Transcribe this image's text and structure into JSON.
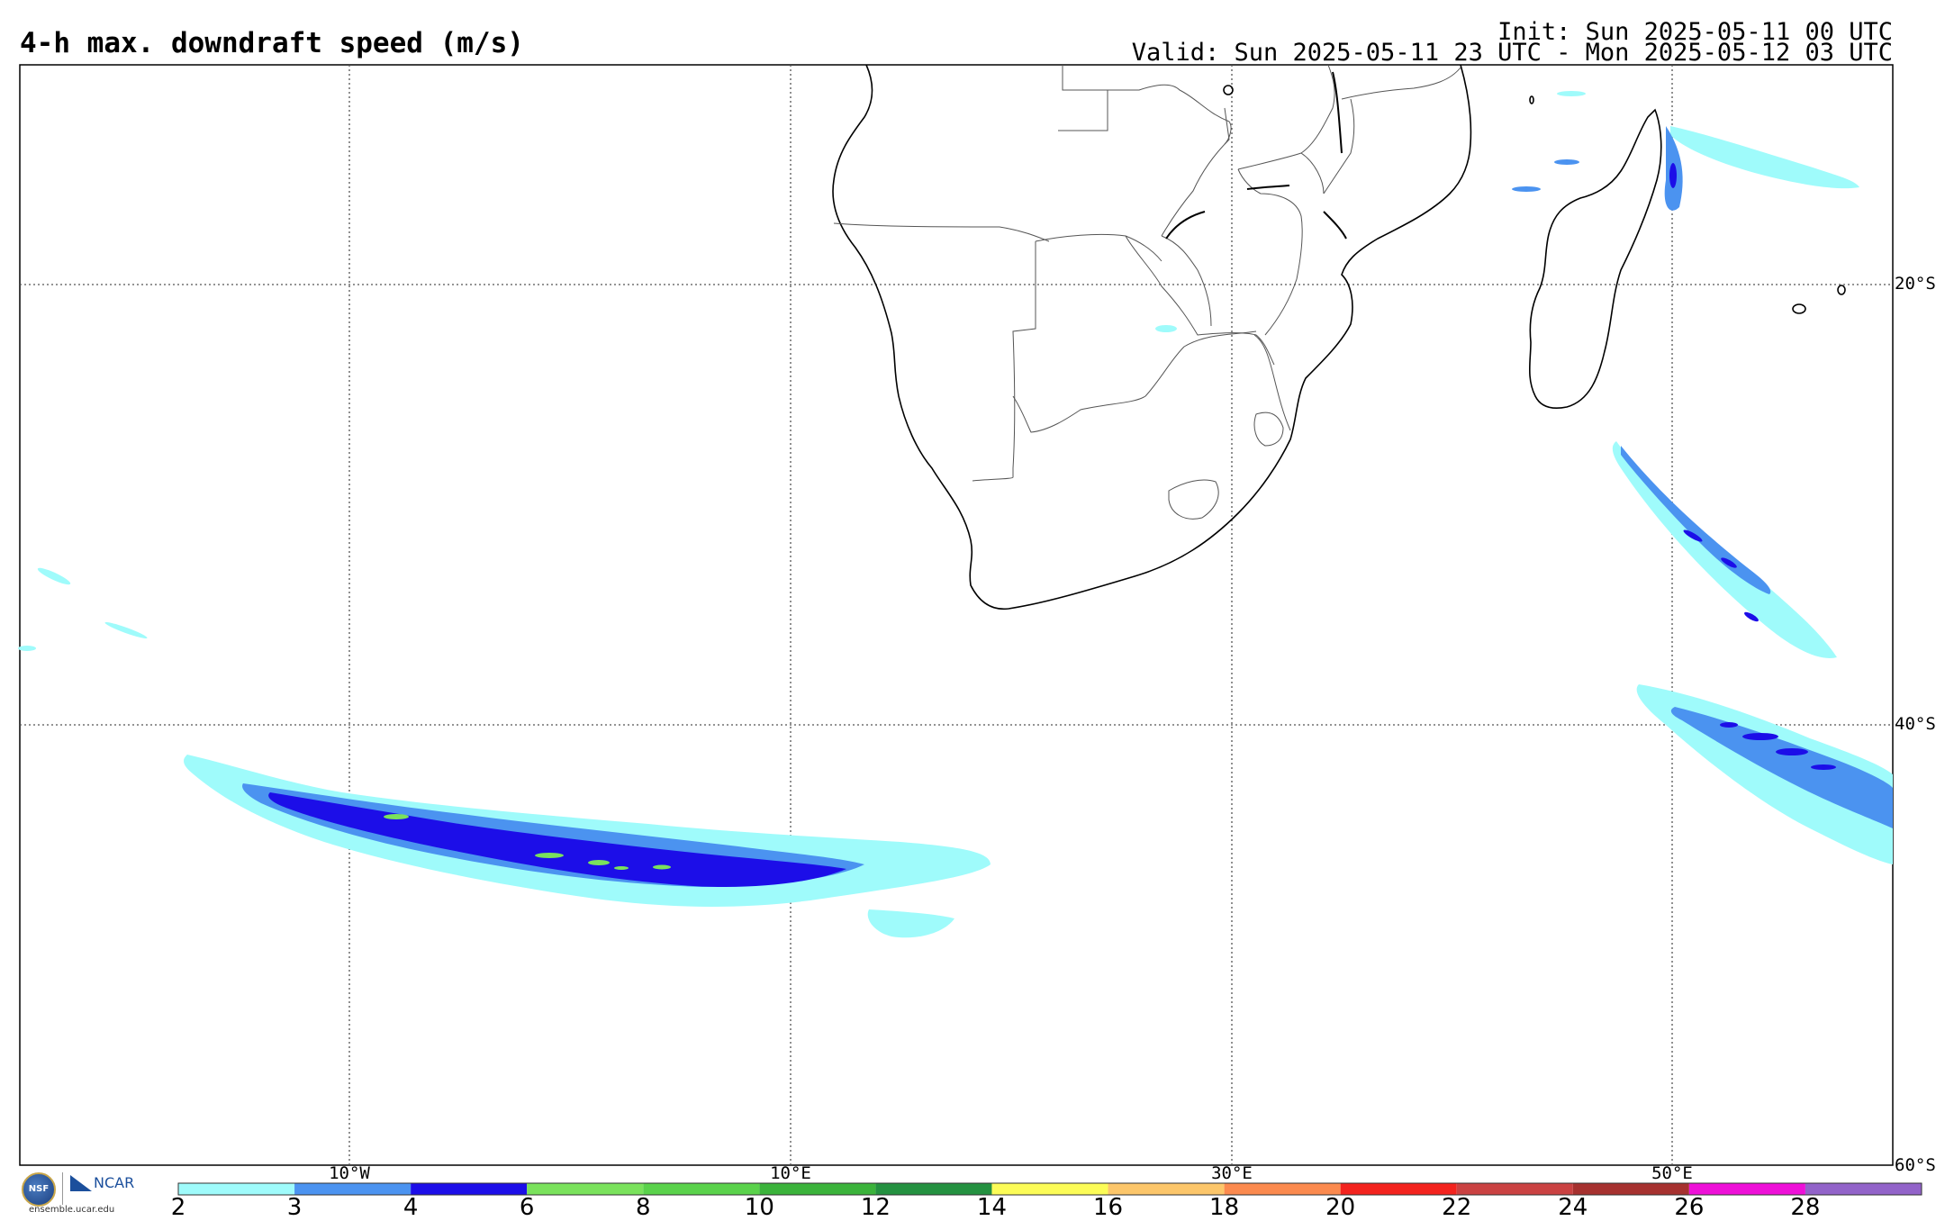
{
  "title": "4-h max. downdraft speed (m/s)",
  "init": "Init: Sun 2025-05-11 00 UTC",
  "valid": "Valid: Sun 2025-05-11 23 UTC - Mon 2025-05-12 03 UTC",
  "lat_labels": [
    "20°S",
    "40°S",
    "60°S"
  ],
  "lon_labels": [
    "10°W",
    "10°E",
    "30°E",
    "50°E"
  ],
  "colorbar": {
    "ticks": [
      "2",
      "3",
      "4",
      "6",
      "8",
      "10",
      "12",
      "14",
      "16",
      "18",
      "20",
      "22",
      "24",
      "26",
      "28"
    ],
    "colors": [
      "#9ffbfb",
      "#4b93f0",
      "#1c0ee8",
      "#7ae25c",
      "#5ad24b",
      "#3bb33b",
      "#249140",
      "#fcfc57",
      "#fcc66a",
      "#fb8a4e",
      "#f3231e",
      "#ca4242",
      "#a6312f",
      "#ee10d8",
      "#9263c9"
    ]
  },
  "logo": {
    "nsf": "NSF",
    "ncar": "NCAR",
    "url": "ensemble.ucar.edu"
  }
}
